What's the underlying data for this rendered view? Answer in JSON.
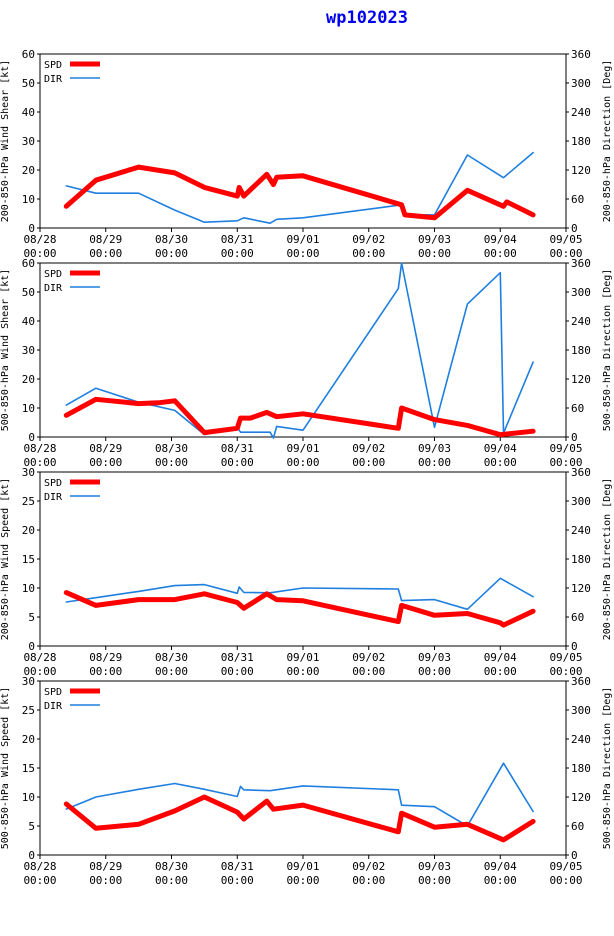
{
  "title": "wp102023",
  "colors": {
    "spd": "#ff0000",
    "dir": "#1e7fe0",
    "axis": "#000000"
  },
  "chart_data": [
    {
      "type": "line",
      "ylabel_left": "200-850-hPa Wind Shear [kt]",
      "ylabel_right": "200-850-hPa Direction [Deg]",
      "ylim_left": [
        0,
        60
      ],
      "yticks_left": [
        0,
        10,
        20,
        30,
        40,
        50,
        60
      ],
      "ylim_right": [
        0,
        360
      ],
      "yticks_right": [
        0,
        60,
        120,
        180,
        240,
        300,
        360
      ],
      "legend": [
        "SPD",
        "DIR"
      ],
      "series": [
        {
          "name": "SPD",
          "axis": "left",
          "x": [
            28.4,
            28.85,
            29.5,
            30.05,
            30.5,
            31.0,
            31.03,
            31.1,
            31.45,
            31.55,
            31.6,
            32.0,
            33.5,
            33.55,
            34.0,
            34.5,
            35.05,
            35.1,
            35.5
          ],
          "y": [
            7.5,
            16.5,
            21,
            19,
            14,
            11,
            14,
            11,
            18.5,
            15,
            17.5,
            18,
            8,
            4.5,
            3.5,
            13,
            7.5,
            9,
            4.5
          ]
        },
        {
          "name": "DIR",
          "axis": "right",
          "x": [
            28.4,
            28.85,
            29.5,
            30.05,
            30.5,
            31.0,
            31.1,
            31.5,
            31.6,
            32.0,
            33.5,
            33.55,
            34.0,
            34.5,
            35.05,
            35.5
          ],
          "y": [
            87,
            72,
            72,
            37,
            12,
            15,
            21,
            10,
            18,
            21,
            48,
            28,
            27,
            151,
            104,
            156
          ]
        }
      ]
    },
    {
      "type": "line",
      "ylabel_left": "500-850-hPa Wind Shear [kt]",
      "ylabel_right": "500-850-hPa Direction [Deg]",
      "ylim_left": [
        0,
        60
      ],
      "yticks_left": [
        0,
        10,
        20,
        30,
        40,
        50,
        60
      ],
      "ylim_right": [
        0,
        360
      ],
      "yticks_right": [
        0,
        60,
        120,
        180,
        240,
        300,
        360
      ],
      "legend": [
        "SPD",
        "DIR"
      ],
      "series": [
        {
          "name": "SPD",
          "axis": "left",
          "x": [
            28.4,
            28.85,
            29.5,
            29.8,
            30.05,
            30.5,
            31.0,
            31.05,
            31.2,
            31.45,
            31.6,
            32.0,
            33.45,
            33.5,
            34.0,
            34.5,
            35.0,
            35.5
          ],
          "y": [
            7.5,
            13,
            11.5,
            11.8,
            12.5,
            1.5,
            3,
            6.5,
            6.5,
            8.5,
            7,
            8,
            3,
            10,
            6,
            4,
            0.8,
            2
          ]
        },
        {
          "name": "DIR",
          "axis": "right",
          "x": [
            28.4,
            28.85,
            29.5,
            30.05,
            30.5,
            31.0,
            31.05,
            31.5,
            31.55,
            31.6,
            32.0,
            33.45,
            33.5,
            34.0,
            34.5,
            35.0,
            35.05,
            35.5
          ],
          "y": [
            66,
            101,
            72,
            55,
            5,
            20,
            10,
            10,
            -2,
            22,
            14,
            307,
            360,
            20,
            275,
            340,
            8,
            155
          ]
        }
      ]
    },
    {
      "type": "line",
      "ylabel_left": "200-850-hPa Wind Speed [kt]",
      "ylabel_right": "200-850-hPa Direction [Deg]",
      "ylim_left": [
        0,
        30
      ],
      "yticks_left": [
        0,
        5,
        10,
        15,
        20,
        25,
        30
      ],
      "ylim_right": [
        0,
        360
      ],
      "yticks_right": [
        0,
        60,
        120,
        180,
        240,
        300,
        360
      ],
      "legend": [
        "SPD",
        "DIR"
      ],
      "series": [
        {
          "name": "SPD",
          "axis": "left",
          "x": [
            28.4,
            28.85,
            29.5,
            30.05,
            30.5,
            31.0,
            31.1,
            31.45,
            31.6,
            32.0,
            33.45,
            33.5,
            34.0,
            34.5,
            35.0,
            35.05,
            35.5
          ],
          "y": [
            9.2,
            7,
            8,
            8,
            9,
            7.5,
            6.5,
            9,
            8,
            7.8,
            4.2,
            7,
            5.3,
            5.6,
            4,
            3.6,
            6
          ]
        },
        {
          "name": "DIR",
          "axis": "right",
          "x": [
            28.4,
            28.85,
            29.5,
            30.05,
            30.5,
            31.0,
            31.03,
            31.1,
            31.5,
            32.0,
            33.45,
            33.5,
            34.0,
            34.5,
            35.0,
            35.5
          ],
          "y": [
            91,
            100,
            113,
            125,
            127,
            109,
            122,
            111,
            110,
            120,
            118,
            94,
            96,
            76,
            140,
            102
          ]
        }
      ]
    },
    {
      "type": "line",
      "ylabel_left": "500-850-hPa Wind Speed [kt]",
      "ylabel_right": "500-850-hPa Direction [Deg]",
      "ylim_left": [
        0,
        30
      ],
      "yticks_left": [
        0,
        5,
        10,
        15,
        20,
        25,
        30
      ],
      "ylim_right": [
        0,
        360
      ],
      "yticks_right": [
        0,
        60,
        120,
        180,
        240,
        300,
        360
      ],
      "legend": [
        "SPD",
        "DIR"
      ],
      "series": [
        {
          "name": "SPD",
          "axis": "left",
          "x": [
            28.4,
            28.85,
            29.5,
            30.05,
            30.5,
            31.0,
            31.1,
            31.45,
            31.55,
            32.0,
            33.45,
            33.5,
            34.0,
            34.5,
            35.05,
            35.5
          ],
          "y": [
            8.8,
            4.6,
            5.3,
            7.6,
            10,
            7.4,
            6.2,
            9.3,
            7.9,
            8.6,
            4,
            7.2,
            4.8,
            5.3,
            2.6,
            5.8
          ]
        },
        {
          "name": "DIR",
          "axis": "right",
          "x": [
            28.4,
            28.85,
            29.5,
            30.05,
            30.5,
            31.0,
            31.05,
            31.1,
            31.5,
            32.0,
            33.45,
            33.5,
            34.0,
            34.5,
            35.05,
            35.5
          ],
          "y": [
            95,
            120,
            136,
            148,
            136,
            121,
            142,
            135,
            133,
            143,
            135,
            103,
            100,
            60,
            190,
            90
          ]
        }
      ]
    }
  ],
  "x_axis": {
    "xlim": [
      28.0,
      36.0
    ],
    "ticks": [
      28,
      29,
      30,
      31,
      32,
      33,
      34,
      35,
      36
    ],
    "tick_labels": [
      "08/28",
      "08/29",
      "08/30",
      "08/31",
      "09/01",
      "09/02",
      "09/03",
      "09/04",
      "09/05"
    ],
    "tick_sublabel": "00:00"
  }
}
